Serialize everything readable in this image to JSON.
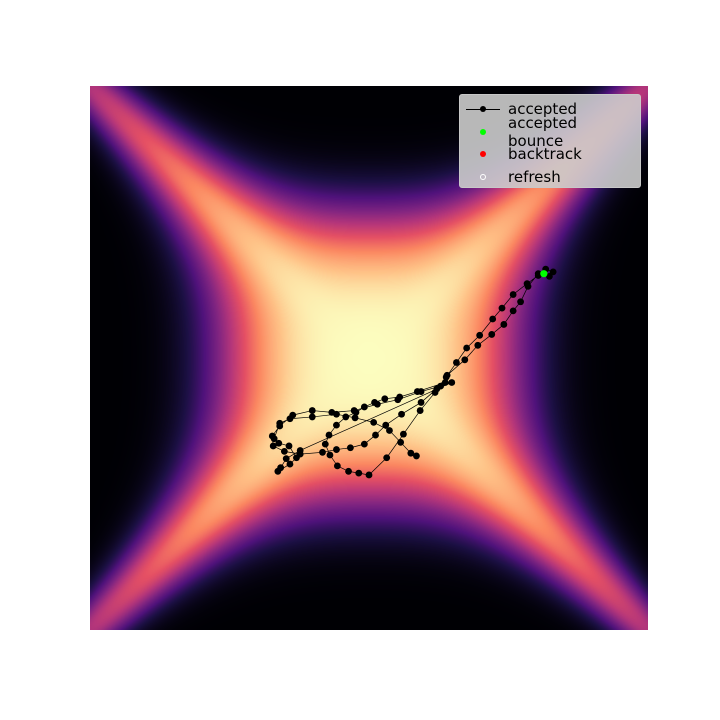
{
  "chart_data": {
    "type": "scatter",
    "background": "density-heatmap",
    "colormap": "magma",
    "grid": false,
    "axes_visible": false,
    "xlim": [
      -3,
      3
    ],
    "ylim": [
      -3,
      3
    ],
    "legend": {
      "placement": "top-right",
      "entries": [
        {
          "label": "accepted",
          "marker": "line-dot",
          "color": "#000000"
        },
        {
          "label": "accepted bounce",
          "marker": "dot",
          "color": "#00ff00"
        },
        {
          "label": "backtrack",
          "marker": "dot",
          "color": "#ff0000"
        },
        {
          "label": "refresh",
          "marker": "open-dot",
          "color": "#ffffff"
        }
      ]
    },
    "series": [
      {
        "name": "accepted",
        "color": "#000000",
        "points": [
          [
            0.82,
            -0.27
          ],
          [
            0.52,
            -0.37
          ],
          [
            0.33,
            -0.43
          ],
          [
            0.17,
            -0.45
          ],
          [
            0.06,
            -0.49
          ],
          [
            -0.05,
            -0.54
          ],
          [
            -0.14,
            -0.6
          ],
          [
            -0.25,
            -0.65
          ],
          [
            -0.35,
            -0.74
          ],
          [
            -0.43,
            -0.85
          ],
          [
            -0.47,
            -0.95
          ],
          [
            -0.42,
            -1.07
          ],
          [
            -0.34,
            -1.19
          ],
          [
            -0.22,
            -1.25
          ],
          [
            -0.11,
            -1.27
          ],
          [
            0.0,
            -1.29
          ],
          [
            0.19,
            -1.1
          ],
          [
            0.37,
            -0.84
          ],
          [
            0.55,
            -0.58
          ],
          [
            0.71,
            -0.38
          ],
          [
            0.84,
            -0.19
          ],
          [
            1.03,
            -0.02
          ],
          [
            1.17,
            0.14
          ],
          [
            1.32,
            0.26
          ],
          [
            1.45,
            0.37
          ],
          [
            1.55,
            0.52
          ],
          [
            1.63,
            0.62
          ],
          [
            1.71,
            0.79
          ],
          [
            1.82,
            0.93
          ],
          [
            1.9,
            0.98
          ],
          [
            1.98,
            0.95
          ],
          [
            1.94,
            0.9
          ],
          [
            1.82,
            0.91
          ],
          [
            1.7,
            0.82
          ],
          [
            1.55,
            0.7
          ],
          [
            1.43,
            0.55
          ],
          [
            1.33,
            0.43
          ],
          [
            1.19,
            0.25
          ],
          [
            1.05,
            0.11
          ],
          [
            0.94,
            -0.05
          ],
          [
            0.83,
            -0.21
          ],
          [
            0.73,
            -0.34
          ],
          [
            0.56,
            -0.49
          ],
          [
            0.35,
            -0.62
          ],
          [
            0.18,
            -0.74
          ],
          [
            0.07,
            -0.85
          ],
          [
            -0.05,
            -0.95
          ],
          [
            -0.2,
            -0.99
          ],
          [
            -0.35,
            -1.01
          ],
          [
            -0.5,
            -1.04
          ],
          [
            -0.74,
            -1.06
          ],
          [
            -0.91,
            -1.03
          ],
          [
            -1.03,
            -0.97
          ],
          [
            -1.04,
            -0.86
          ],
          [
            -0.96,
            -0.75
          ],
          [
            -0.82,
            -0.63
          ],
          [
            -0.61,
            -0.58
          ],
          [
            -0.4,
            -0.6
          ],
          [
            -0.16,
            -0.58
          ],
          [
            0.09,
            -0.51
          ],
          [
            0.31,
            -0.46
          ],
          [
            0.56,
            -0.37
          ],
          [
            0.77,
            -0.31
          ],
          [
            0.89,
            -0.27
          ],
          [
            -0.74,
            -1.02
          ],
          [
            -0.89,
            -1.11
          ],
          [
            -0.95,
            -1.21
          ],
          [
            -0.98,
            -1.25
          ],
          [
            -0.85,
            -1.17
          ],
          [
            -0.78,
            -1.1
          ],
          [
            -0.86,
            -0.97
          ],
          [
            -0.97,
            -0.94
          ],
          [
            -1.02,
            -0.89
          ],
          [
            -0.96,
            -0.72
          ],
          [
            -0.85,
            -0.67
          ],
          [
            -0.61,
            -0.65
          ],
          [
            -0.35,
            -0.62
          ],
          [
            -0.15,
            -0.66
          ],
          [
            0.05,
            -0.71
          ],
          [
            0.22,
            -0.8
          ],
          [
            0.34,
            -0.93
          ],
          [
            0.45,
            -1.05
          ],
          [
            0.51,
            -1.08
          ]
        ]
      },
      {
        "name": "accepted bounce",
        "color": "#00ff00",
        "points": [
          [
            1.88,
            0.93
          ]
        ]
      }
    ]
  }
}
